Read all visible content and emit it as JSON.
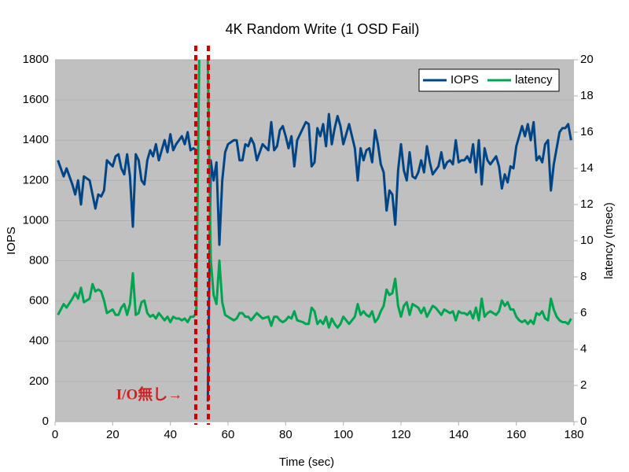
{
  "chart_data": {
    "type": "line",
    "title": "4K Random Write (1 OSD Fail)",
    "xlabel": "Time (sec)",
    "ylabel": "IOPS",
    "y2label": "latency (msec)",
    "annotation": "I/O無し→",
    "xlim": [
      0,
      180
    ],
    "xticks": [
      0,
      20,
      40,
      60,
      80,
      100,
      120,
      140,
      160,
      180
    ],
    "ylim": [
      0,
      1800
    ],
    "yticks": [
      0,
      200,
      400,
      600,
      800,
      1000,
      1200,
      1400,
      1600,
      1800
    ],
    "y2lim": [
      0,
      20
    ],
    "y2ticks": [
      0,
      2,
      4,
      6,
      8,
      10,
      12,
      14,
      16,
      18,
      20
    ],
    "grid": true,
    "legend": "upper right",
    "x": [
      1,
      3,
      4,
      6,
      7,
      8,
      9,
      10,
      12,
      13,
      14,
      15,
      16,
      17,
      18,
      20,
      21,
      22,
      23,
      24,
      25,
      26,
      27,
      28,
      29,
      30,
      31,
      32,
      33,
      34,
      35,
      36,
      37,
      38,
      39,
      40,
      41,
      42,
      43,
      44,
      45,
      46,
      47,
      48,
      49,
      50,
      51,
      53,
      54,
      55,
      56,
      57,
      58,
      59,
      60,
      62,
      63,
      64,
      65,
      66,
      67,
      68,
      69,
      70,
      72,
      74,
      75,
      76,
      77,
      78,
      79,
      80,
      81,
      82,
      83,
      84,
      86,
      87,
      88,
      89,
      90,
      91,
      92,
      93,
      94,
      95,
      96,
      97,
      98,
      99,
      100,
      102,
      104,
      105,
      106,
      107,
      108,
      109,
      110,
      111,
      112,
      113,
      114,
      115,
      116,
      117,
      118,
      119,
      120,
      121,
      122,
      123,
      124,
      125,
      126,
      127,
      128,
      129,
      130,
      131,
      132,
      133,
      134,
      135,
      136,
      137,
      138,
      139,
      140,
      141,
      142,
      143,
      144,
      145,
      146,
      147,
      148,
      149,
      150,
      151,
      152,
      153,
      154,
      155,
      156,
      157,
      158,
      159,
      160,
      161,
      162,
      163,
      164,
      165,
      166,
      167,
      168,
      169,
      170,
      171,
      172,
      173,
      174,
      175,
      176,
      177,
      178,
      179
    ],
    "series": [
      {
        "name": "IOPS",
        "color": "#004586",
        "values": [
          1300,
          1220,
          1260,
          1180,
          1130,
          1200,
          1080,
          1220,
          1200,
          1130,
          1060,
          1130,
          1120,
          1150,
          1300,
          1270,
          1320,
          1330,
          1260,
          1230,
          1330,
          1220,
          970,
          1330,
          1300,
          1200,
          1180,
          1300,
          1350,
          1320,
          1380,
          1300,
          1350,
          1400,
          1340,
          1430,
          1350,
          1380,
          1400,
          1420,
          1380,
          1440,
          1350,
          1360,
          1350,
          null,
          null,
          100,
          1300,
          1200,
          1290,
          880,
          1200,
          1340,
          1380,
          1400,
          1400,
          1300,
          1300,
          1380,
          1370,
          1410,
          1380,
          1300,
          1380,
          1350,
          1490,
          1350,
          1370,
          1450,
          1470,
          1420,
          1360,
          1420,
          1270,
          1400,
          1460,
          1490,
          1480,
          1270,
          1290,
          1460,
          1420,
          1480,
          1370,
          1530,
          1380,
          1460,
          1520,
          1470,
          1380,
          1480,
          1360,
          1200,
          1360,
          1300,
          1350,
          1360,
          1290,
          1450,
          1380,
          1280,
          1240,
          1050,
          1150,
          1130,
          980,
          1250,
          1380,
          1250,
          1200,
          1340,
          1220,
          1210,
          1240,
          1300,
          1240,
          1370,
          1290,
          1230,
          1250,
          1270,
          1340,
          1260,
          1290,
          1300,
          1280,
          1400,
          1290,
          1300,
          1300,
          1320,
          1290,
          1380,
          1240,
          1400,
          1180,
          1360,
          1300,
          1280,
          1300,
          1320,
          1270,
          1160,
          1230,
          1190,
          1270,
          1260,
          1370,
          1420,
          1470,
          1420,
          1480,
          1400,
          1490,
          1300,
          1320,
          1290,
          1380,
          1400,
          1150,
          1280,
          1360,
          1440,
          1460,
          1460,
          1480,
          1400
        ]
      },
      {
        "name": "latency",
        "color": "#00a550",
        "axis": "y2",
        "values": [
          5.9,
          6.5,
          6.3,
          6.8,
          7.1,
          6.8,
          7.4,
          6.6,
          6.8,
          7.6,
          7.2,
          7.3,
          7.2,
          6.7,
          6.0,
          6.2,
          5.9,
          5.9,
          6.3,
          6.5,
          5.9,
          6.5,
          8.2,
          5.9,
          6.0,
          6.6,
          6.7,
          6.0,
          5.8,
          5.9,
          5.7,
          6.0,
          5.8,
          5.6,
          5.8,
          5.5,
          5.8,
          5.7,
          5.7,
          5.6,
          5.7,
          5.5,
          5.8,
          5.8,
          6.0,
          20,
          null,
          20,
          9.0,
          7.0,
          6.5,
          8.9,
          6.6,
          5.9,
          5.8,
          5.6,
          5.7,
          6.0,
          6.0,
          5.8,
          5.8,
          5.6,
          5.8,
          6.0,
          5.7,
          5.8,
          5.3,
          5.8,
          5.8,
          5.6,
          5.5,
          5.6,
          5.8,
          5.7,
          6.1,
          5.6,
          5.5,
          5.4,
          5.4,
          6.3,
          6.1,
          5.4,
          5.6,
          5.4,
          5.8,
          5.2,
          5.7,
          5.4,
          5.2,
          5.4,
          5.8,
          5.4,
          5.8,
          6.5,
          5.9,
          6.1,
          5.9,
          5.8,
          6.1,
          5.5,
          5.7,
          6.1,
          6.4,
          7.3,
          7.0,
          7.1,
          7.9,
          6.4,
          5.8,
          6.4,
          6.6,
          5.9,
          6.5,
          6.4,
          6.3,
          6.0,
          6.3,
          5.8,
          6.1,
          6.4,
          6.3,
          6.1,
          5.9,
          6.2,
          6.1,
          6.0,
          6.1,
          5.6,
          6.1,
          6.0,
          6.0,
          5.9,
          6.1,
          5.7,
          6.3,
          5.6,
          6.8,
          5.8,
          6.0,
          6.1,
          6.0,
          5.9,
          6.1,
          6.7,
          6.4,
          6.6,
          6.2,
          6.2,
          5.8,
          5.6,
          5.5,
          5.6,
          5.4,
          5.6,
          5.4,
          6.0,
          5.9,
          6.1,
          5.7,
          5.6,
          6.8,
          6.2,
          5.8,
          5.6,
          5.5,
          5.5,
          5.4,
          5.7
        ]
      }
    ]
  }
}
